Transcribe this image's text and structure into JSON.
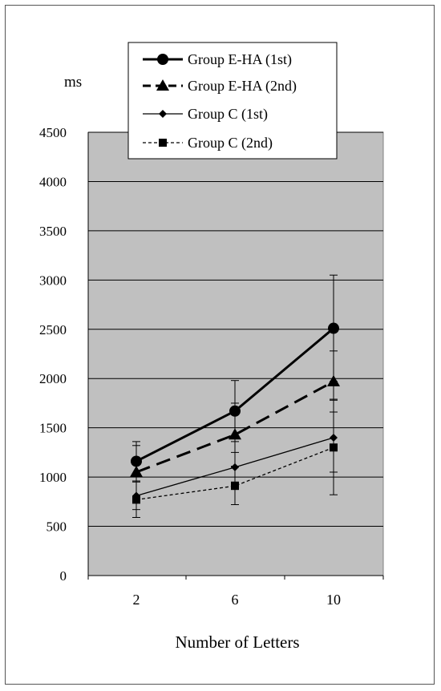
{
  "chart_data": {
    "type": "line",
    "title": "",
    "xlabel": "Number of Letters",
    "ylabel": "ms",
    "categories": [
      "2",
      "6",
      "10"
    ],
    "yticks": [
      "0",
      "500",
      "1000",
      "1500",
      "2000",
      "2500",
      "3000",
      "3500",
      "4000",
      "4500"
    ],
    "ylim": [
      0,
      4500
    ],
    "grid": true,
    "legend_position": "top-center",
    "series": [
      {
        "name": "Group E-HA (1st)",
        "values": [
          1160,
          1670,
          2510
        ],
        "error_upper": [
          1360,
          1980,
          3050
        ],
        "error_lower": [
          960,
          1360,
          1970
        ],
        "marker": "circle",
        "style": "solid-thick"
      },
      {
        "name": "Group E-HA (2nd)",
        "values": [
          1050,
          1430,
          1970
        ],
        "error_upper": [
          1320,
          1750,
          2280
        ],
        "error_lower": [
          780,
          1110,
          1660
        ],
        "marker": "triangle",
        "style": "dashed-thick"
      },
      {
        "name": "Group C (1st)",
        "values": [
          810,
          1100,
          1400
        ],
        "error_upper": [
          950,
          1250,
          1780
        ],
        "error_lower": [
          670,
          950,
          1050
        ],
        "marker": "diamond",
        "style": "solid-thin"
      },
      {
        "name": "Group C (2nd)",
        "values": [
          770,
          910,
          1300
        ],
        "error_upper": [
          960,
          1100,
          1790
        ],
        "error_lower": [
          590,
          720,
          820
        ],
        "marker": "square",
        "style": "dotted-thin"
      }
    ],
    "colors": {
      "plot_background": "#c0c0c0",
      "line": "#000000",
      "grid": "#000000"
    }
  }
}
